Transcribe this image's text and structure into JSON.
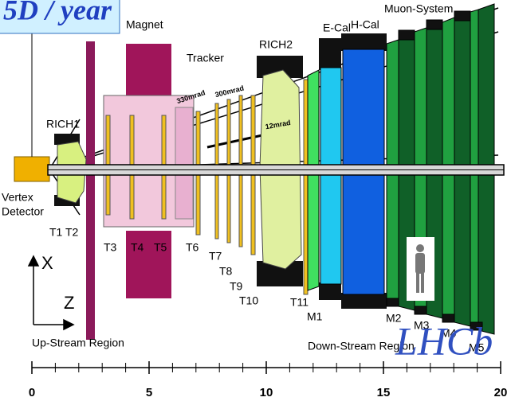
{
  "header": {
    "title": "5D / year"
  },
  "labels": {
    "magnet": "Magnet",
    "tracker": "Tracker",
    "rich2": "RICH2",
    "ecal": "E-Cal",
    "hcal": "H-Cal",
    "muon": "Muon-System",
    "rich1": "RICH1",
    "vertex_1": "Vertex",
    "vertex_2": "Detector",
    "t1t2": "T1 T2",
    "t3": "T3",
    "t4": "T4",
    "t5": "T5",
    "t6": "T6",
    "t7": "T7",
    "t8": "T8",
    "t9": "T9",
    "t10": "T10",
    "t11": "T11",
    "m1": "M1",
    "m2": "M2",
    "m3": "M3",
    "m4": "M4",
    "m5": "M5",
    "x": "X",
    "z": "Z",
    "upstream": "Up-Stream Region",
    "downstream": "Down-Stream Region",
    "a330": "330mrad",
    "a300": "300mrad",
    "a12": "12mrad"
  },
  "brand": "LHCb",
  "axis": {
    "ticks": [
      0,
      5,
      10,
      15,
      20
    ]
  }
}
